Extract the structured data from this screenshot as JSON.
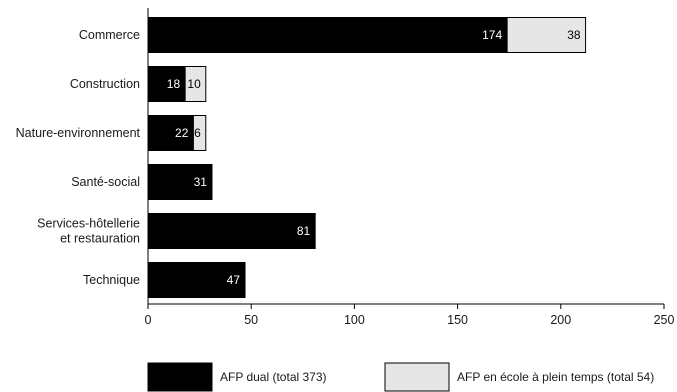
{
  "colors": {
    "dual": "#000000",
    "school": "#e6e6e6",
    "axis": "#000000"
  },
  "chart_data": {
    "type": "bar",
    "orientation": "horizontal",
    "stacked": true,
    "categories": [
      [
        "Commerce"
      ],
      [
        "Construction"
      ],
      [
        "Nature-environnement"
      ],
      [
        "Santé-social"
      ],
      [
        "Services-hôtellerie",
        "et restauration"
      ],
      [
        "Technique"
      ]
    ],
    "series": [
      {
        "name": "AFP dual (total 373)",
        "values": [
          174,
          18,
          22,
          31,
          81,
          47
        ]
      },
      {
        "name": "AFP en école à plein temps (total 54)",
        "values": [
          38,
          10,
          6,
          0,
          0,
          0
        ]
      }
    ],
    "xlim": [
      0,
      250
    ],
    "xticks": [
      0,
      50,
      100,
      150,
      200,
      250
    ],
    "legend_position": "bottom",
    "grid": false
  }
}
